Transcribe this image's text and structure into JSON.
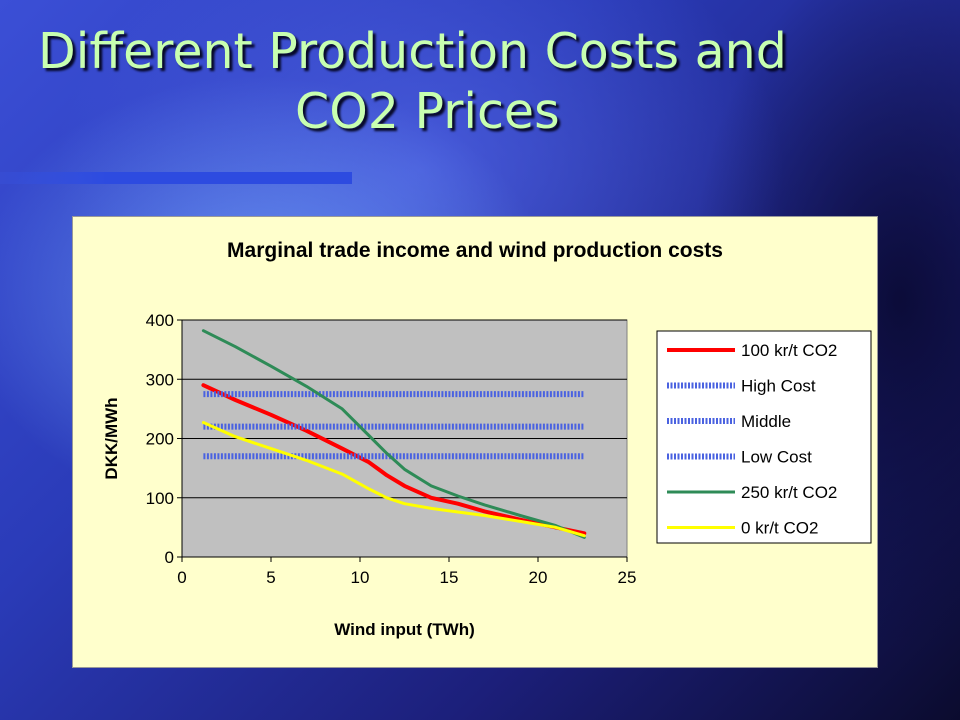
{
  "slide": {
    "title_line1": "Different Production Costs and",
    "title_line2": "CO2 Prices"
  },
  "chart_data": {
    "type": "line",
    "title": "Marginal trade income and wind production costs",
    "xlabel": "Wind input (TWh)",
    "ylabel": "DKK/MWh",
    "xlim": [
      0,
      25
    ],
    "ylim": [
      0,
      400
    ],
    "xticks": [
      0,
      5,
      10,
      15,
      20,
      25
    ],
    "yticks": [
      0,
      100,
      200,
      300,
      400
    ],
    "grid": "horizontal",
    "legend_position": "right",
    "plot_background": "#c0c0c0",
    "series": [
      {
        "name": "100 kr/t CO2",
        "color": "#ff0000",
        "style": "solid",
        "width": 4,
        "x": [
          1.2,
          3,
          5,
          7,
          9,
          10.5,
          11.5,
          12.5,
          14,
          15.5,
          17,
          19,
          21,
          22.6
        ],
        "y": [
          290,
          265,
          240,
          213,
          183,
          160,
          138,
          120,
          100,
          90,
          77,
          63,
          50,
          40
        ]
      },
      {
        "name": "High Cost",
        "color": "#4a62e0",
        "style": "dotted",
        "width": 6,
        "x": [
          1.2,
          22.6
        ],
        "y": [
          275,
          275
        ]
      },
      {
        "name": "Middle",
        "color": "#4a62e0",
        "style": "dotted",
        "width": 6,
        "x": [
          1.2,
          22.6
        ],
        "y": [
          220,
          220
        ]
      },
      {
        "name": "Low Cost",
        "color": "#4a62e0",
        "style": "dotted",
        "width": 6,
        "x": [
          1.2,
          22.6
        ],
        "y": [
          170,
          170
        ]
      },
      {
        "name": "250 kr/t CO2",
        "color": "#2e8b57",
        "style": "solid",
        "width": 3,
        "x": [
          1.2,
          3,
          5,
          7,
          9,
          10.5,
          11.5,
          12.5,
          14,
          15.5,
          17,
          19,
          21,
          22.6
        ],
        "y": [
          382,
          355,
          322,
          288,
          250,
          205,
          175,
          148,
          120,
          103,
          88,
          70,
          53,
          33
        ]
      },
      {
        "name": "0 kr/t CO2",
        "color": "#ffff00",
        "style": "solid",
        "width": 3,
        "x": [
          1.2,
          3,
          5,
          7,
          9,
          10.5,
          11.5,
          12.5,
          14,
          15.5,
          17,
          19,
          21,
          22.6
        ],
        "y": [
          227,
          203,
          183,
          163,
          140,
          115,
          100,
          90,
          82,
          76,
          70,
          60,
          50,
          36
        ]
      }
    ]
  }
}
